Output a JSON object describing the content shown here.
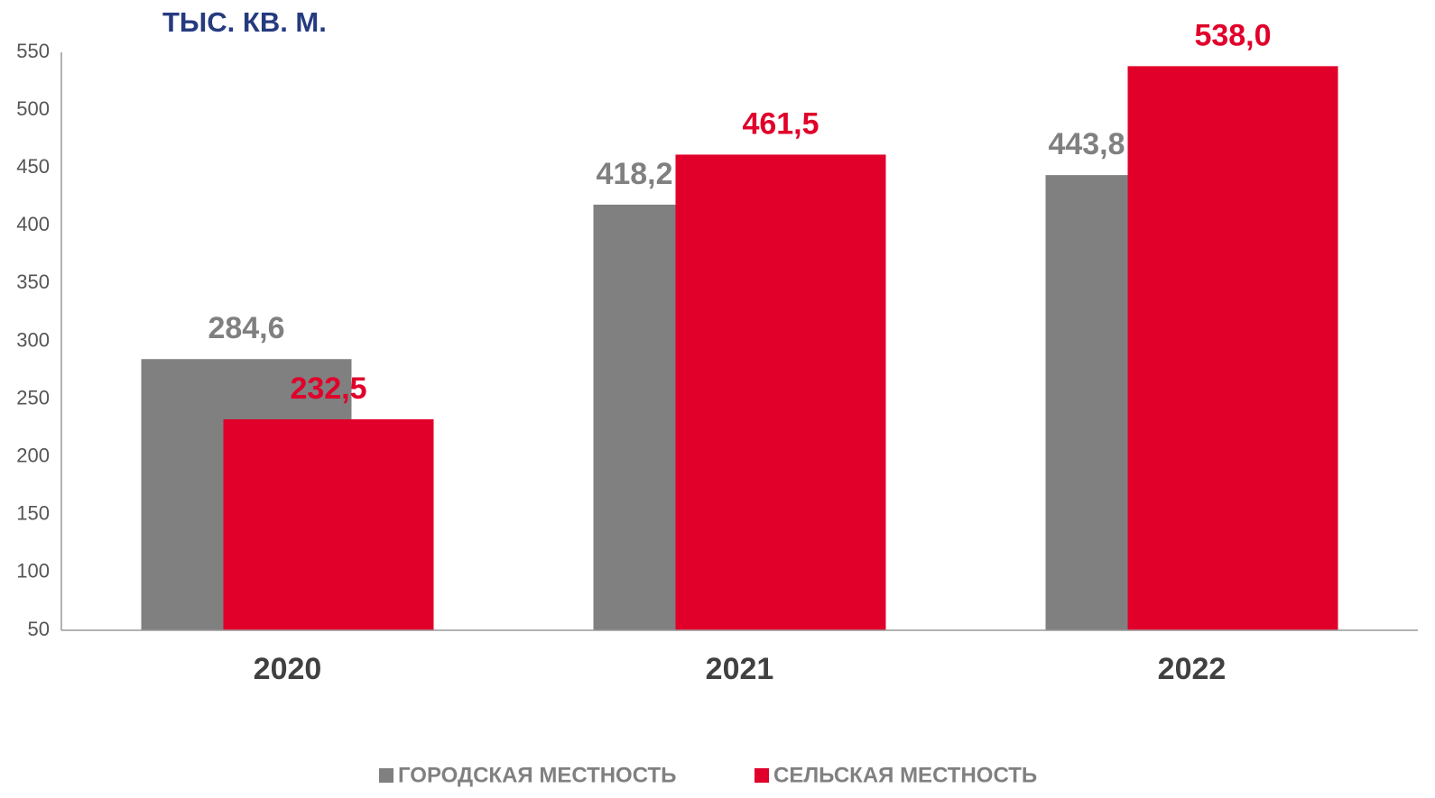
{
  "chart_data": {
    "type": "bar",
    "title": "ТЫС. КВ. М.",
    "categories": [
      "2020",
      "2021",
      "2022"
    ],
    "series": [
      {
        "name": "ГОРОДСКАЯ МЕСТНОСТЬ",
        "color": "#808080",
        "values": [
          284.6,
          418.2,
          443.8
        ],
        "value_labels": [
          "284,6",
          "418,2",
          "443,8"
        ]
      },
      {
        "name": "СЕЛЬСКАЯ МЕСТНОСТЬ",
        "color": "#e0002a",
        "values": [
          232.5,
          461.5,
          538.0
        ],
        "value_labels": [
          "232,5",
          "461,5",
          "538,0"
        ]
      }
    ],
    "ylim": [
      50,
      550
    ],
    "yticks": [
      50,
      100,
      150,
      200,
      250,
      300,
      350,
      400,
      450,
      500,
      550
    ],
    "grid": false,
    "legend": "bottom"
  }
}
